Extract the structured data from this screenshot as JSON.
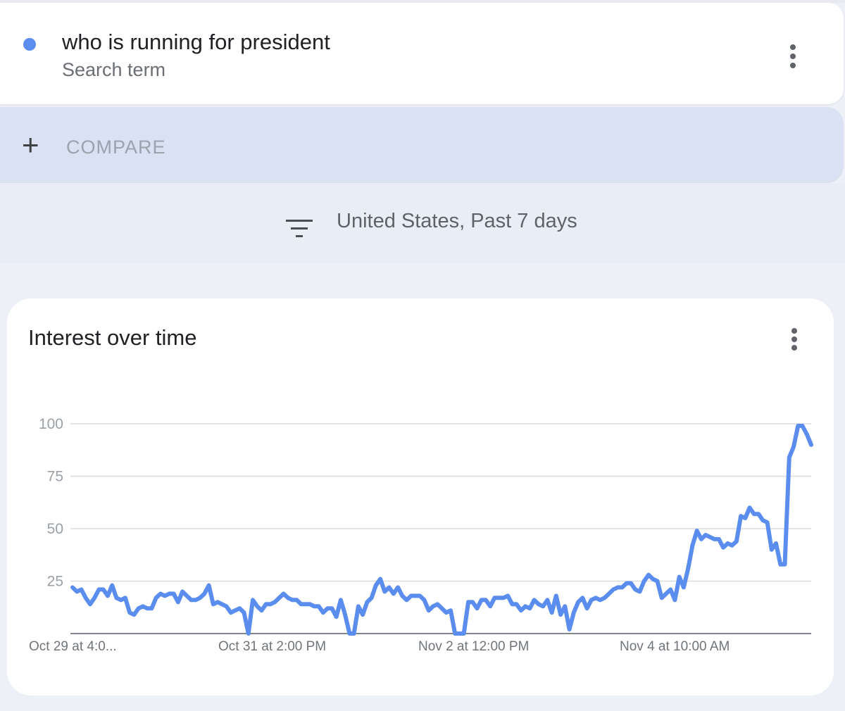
{
  "search_term": {
    "text": "who is running for president",
    "subtitle": "Search term",
    "dot_color": "#5b8def",
    "menu_icon": "more-vert-icon"
  },
  "compare": {
    "icon": "plus-icon",
    "label": "COMPARE"
  },
  "filter": {
    "icon": "filter-icon",
    "label": "United States, Past 7 days"
  },
  "interest_card": {
    "title": "Interest over time",
    "menu_icon": "more-vert-icon"
  },
  "chart_data": {
    "type": "line",
    "title": "Interest over time",
    "ylim": [
      0,
      100
    ],
    "yticks": [
      "100",
      "75",
      "50",
      "25"
    ],
    "grid": true,
    "xtick_labels": [
      "Oct 29 at 4:0...",
      "Oct 31 at 2:00 PM",
      "Nov 2 at 12:00 PM",
      "Nov 4 at 10:00 AM"
    ],
    "line_color": "#5b8def",
    "series": [
      {
        "values": [
          22,
          20,
          21,
          17,
          14,
          17,
          21,
          21,
          18,
          23,
          17,
          16,
          17,
          10,
          9,
          12,
          13,
          12,
          12,
          17,
          19,
          18,
          19,
          19,
          15,
          20,
          18,
          16,
          16,
          17,
          19,
          23,
          14,
          15,
          14,
          13,
          10,
          11,
          12,
          10,
          0,
          16,
          13,
          11,
          14,
          14,
          15,
          17,
          19,
          17,
          16,
          16,
          14,
          14,
          14,
          13,
          13,
          10,
          12,
          12,
          8,
          16,
          9,
          0,
          0,
          13,
          9,
          15,
          17,
          23,
          26,
          20,
          22,
          19,
          22,
          18,
          16,
          18,
          18,
          18,
          16,
          11,
          13,
          14,
          12,
          10,
          11,
          0,
          0,
          0,
          15,
          15,
          12,
          16,
          16,
          13,
          17,
          17,
          17,
          18,
          14,
          14,
          11,
          13,
          12,
          16,
          14,
          13,
          16,
          10,
          18,
          9,
          13,
          2,
          10,
          15,
          17,
          12,
          16,
          17,
          16,
          17,
          19,
          21,
          22,
          22,
          24,
          24,
          21,
          20,
          25,
          28,
          26,
          25,
          17,
          19,
          21,
          16,
          27,
          22,
          31,
          42,
          49,
          45,
          47,
          46,
          45,
          45,
          41,
          43,
          42,
          44,
          56,
          55,
          60,
          57,
          57,
          54,
          53,
          40,
          43,
          33,
          33,
          84,
          89,
          99,
          99,
          95,
          90
        ]
      }
    ]
  }
}
